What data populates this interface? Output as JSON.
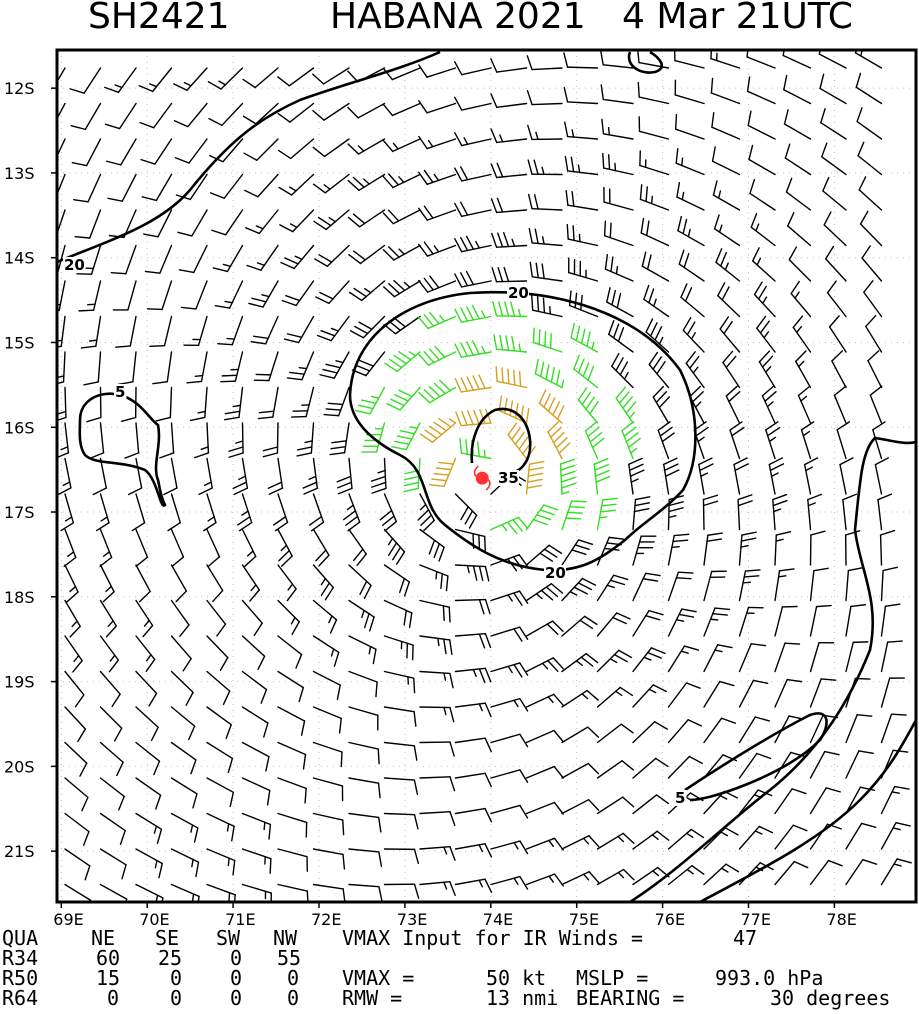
{
  "title": {
    "storm_id": "SH2421",
    "storm_name": "HABANA 2021",
    "datetime": "4 Mar 21UTC"
  },
  "map": {
    "lat_labels": [
      "12S",
      "13S",
      "14S",
      "15S",
      "16S",
      "17S",
      "18S",
      "19S",
      "20S",
      "21S"
    ],
    "lon_labels": [
      "69E",
      "70E",
      "71E",
      "72E",
      "73E",
      "74E",
      "75E",
      "76E",
      "77E",
      "78E"
    ],
    "lon_range": [
      68.95,
      78.95
    ],
    "lat_range": [
      -11.55,
      -21.6
    ],
    "center": {
      "lon": 73.9,
      "lat": -16.6
    },
    "contour_labels": [
      "20",
      "20",
      "20",
      "5",
      "5",
      "35"
    ],
    "colors": {
      "barb_weak": "#000000",
      "barb_34kt": "#33dd22",
      "barb_50kt": "#d4a020",
      "center_marker": "#ff3333",
      "contour": "#000000"
    }
  },
  "table": {
    "header": [
      "QUA",
      "NE",
      "SE",
      "SW",
      "NW"
    ],
    "rows": [
      {
        "label": "R34",
        "values": [
          "60",
          "25",
          "0",
          "55"
        ]
      },
      {
        "label": "R50",
        "values": [
          "15",
          "0",
          "0",
          "0"
        ]
      },
      {
        "label": "R64",
        "values": [
          "0",
          "0",
          "0",
          "0"
        ]
      }
    ],
    "vmax_input_label": "VMAX Input for IR Winds =",
    "vmax_input_value": "47",
    "vmax_label": "VMAX =",
    "vmax_value": "50 kt",
    "mslp_label": "MSLP =",
    "mslp_value": "993.0 hPa",
    "rmw_label": "RMW =",
    "rmw_value": "13 nmi",
    "bearing_label": "BEARING =",
    "bearing_value": "30 degrees"
  }
}
